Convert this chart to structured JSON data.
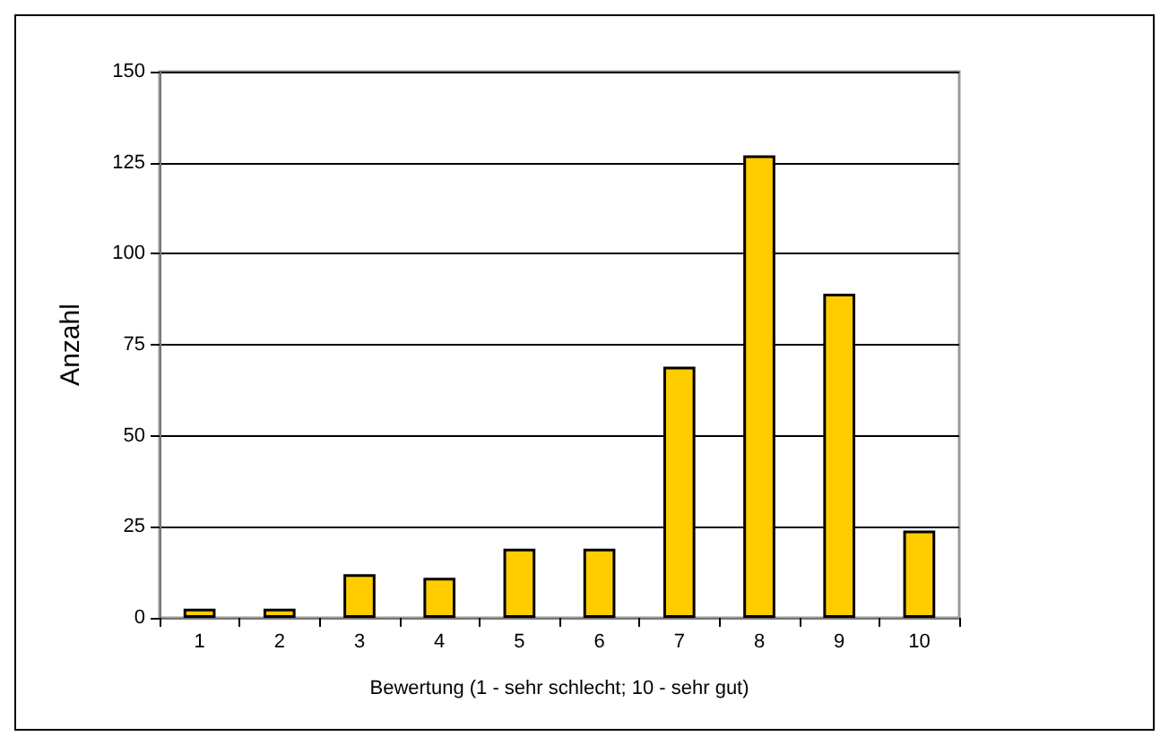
{
  "chart_data": {
    "type": "bar",
    "xlabel": "Bewertung (1 - sehr schlecht; 10 - sehr gut)",
    "ylabel": "Anzahl",
    "categories": [
      "1",
      "2",
      "3",
      "4",
      "5",
      "6",
      "7",
      "8",
      "9",
      "10"
    ],
    "values": [
      2.5,
      2.5,
      12,
      11,
      19,
      19,
      69,
      127,
      89,
      24
    ],
    "color": "#ffcc00",
    "ylim": [
      0,
      150
    ],
    "yticks": [
      0,
      25,
      50,
      75,
      100,
      125,
      150
    ],
    "grid": "y"
  }
}
